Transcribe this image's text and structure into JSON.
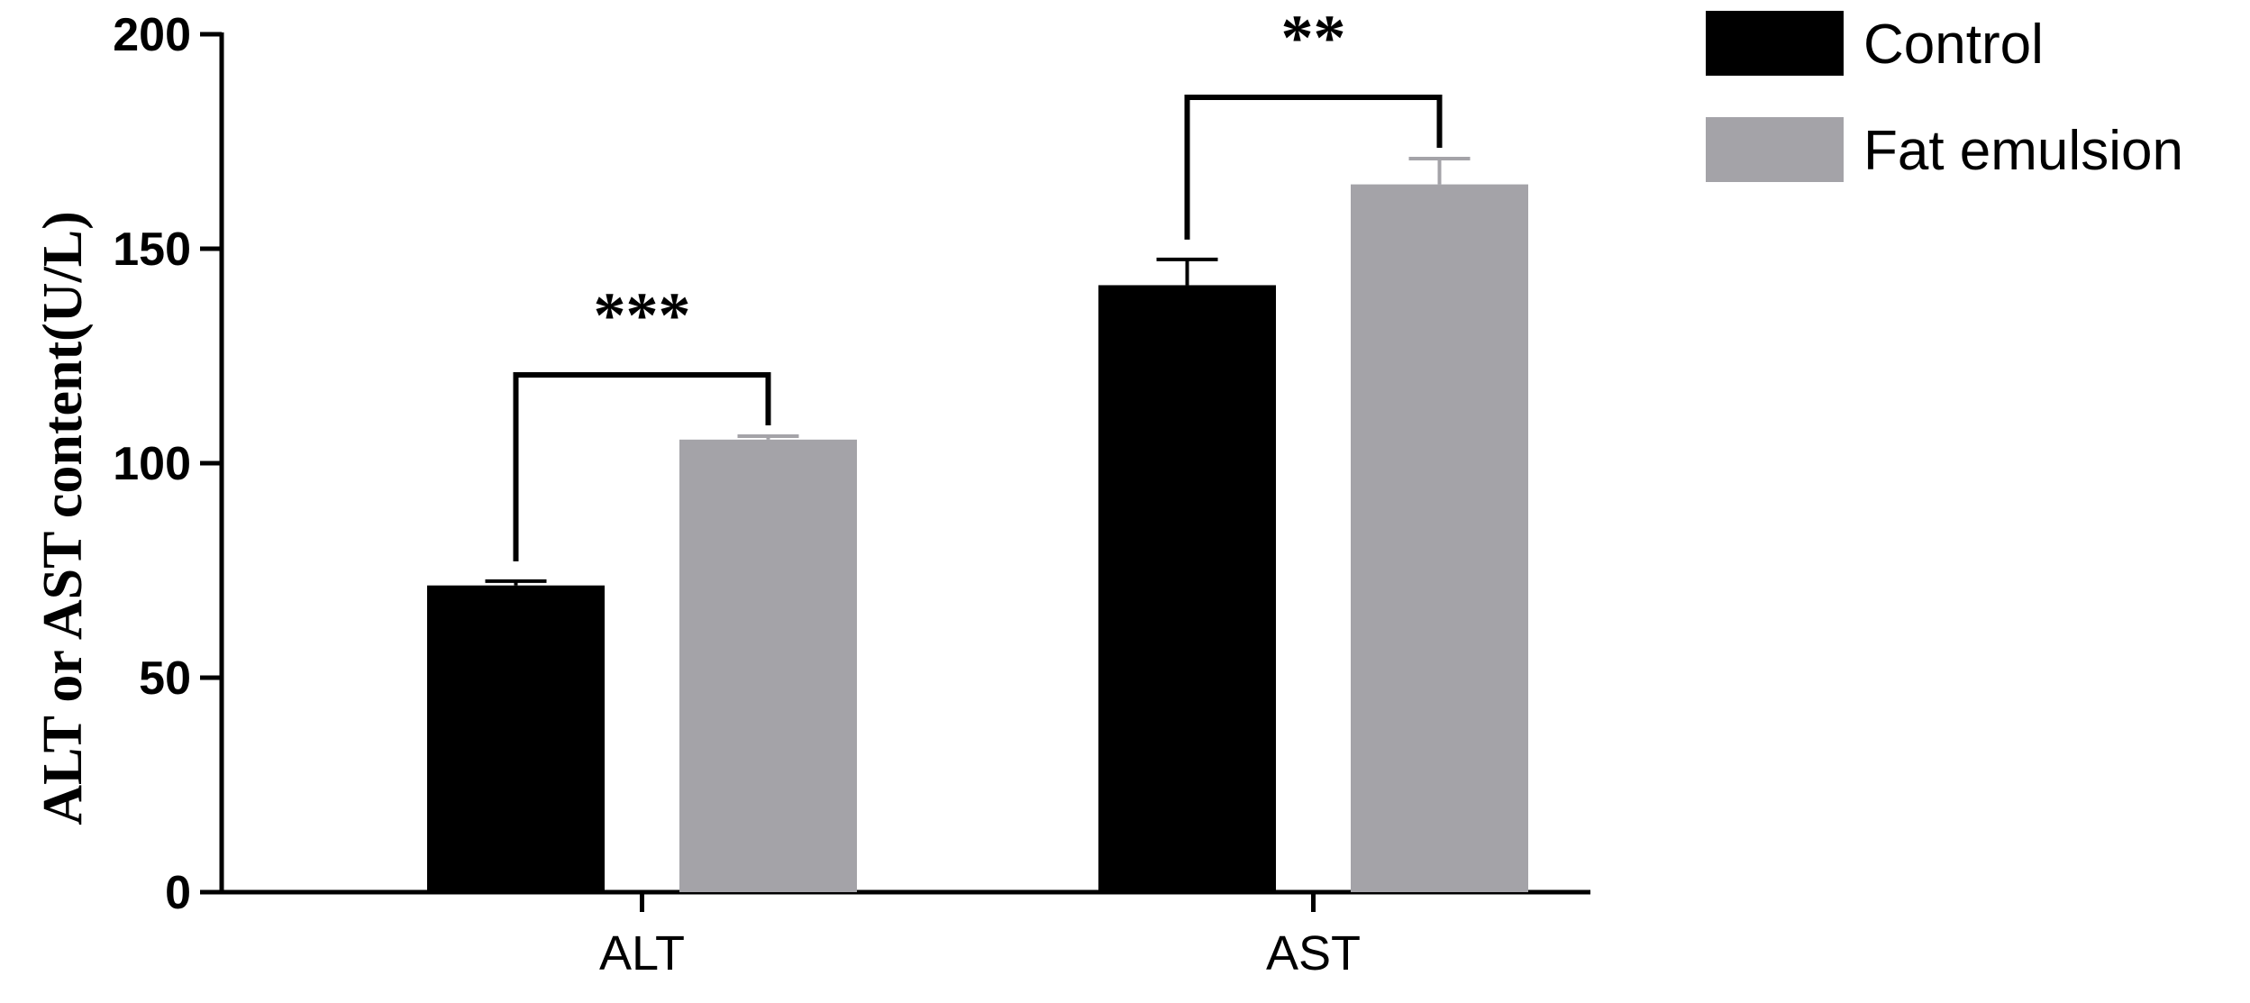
{
  "chart_data": {
    "type": "bar",
    "title": "",
    "xlabel": "",
    "ylabel": "ALT or AST content(U/L)",
    "ylim": [
      0,
      200
    ],
    "yticks": [
      0,
      50,
      100,
      150,
      200
    ],
    "categories": [
      "ALT",
      "AST"
    ],
    "series": [
      {
        "name": "Control",
        "values": [
          71.5,
          141.5
        ],
        "errors": [
          1,
          6
        ],
        "color": "#000000"
      },
      {
        "name": "Fat emulsion",
        "values": [
          105.5,
          165
        ],
        "errors": [
          0.8,
          6
        ],
        "color": "#a4a3a8"
      }
    ],
    "significance": [
      "***",
      "**"
    ],
    "legend_position": "top-right",
    "grid": false
  }
}
